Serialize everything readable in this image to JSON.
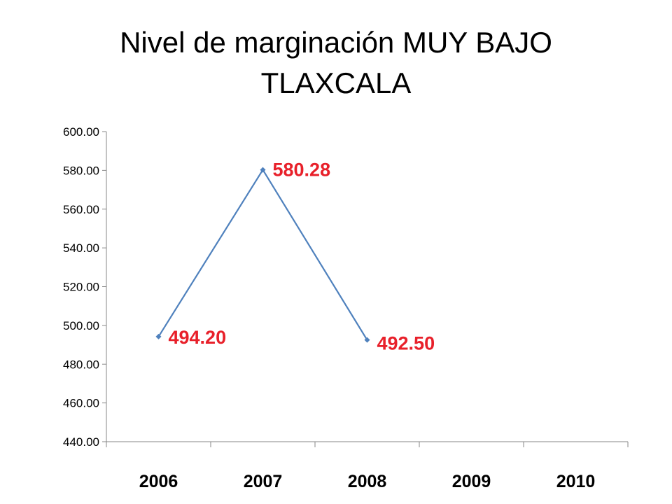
{
  "page": {
    "title_line1": "Nivel de marginación MUY BAJO",
    "title_line2": "TLAXCALA"
  },
  "chart_data": {
    "type": "line",
    "title": "Nivel de marginación MUY BAJO TLAXCALA",
    "xlabel": "",
    "ylabel": "",
    "categories": [
      "2006",
      "2007",
      "2008",
      "2009",
      "2010"
    ],
    "series": [
      {
        "values": [
          494.2,
          580.28,
          492.5,
          null,
          null
        ]
      }
    ],
    "data_labels": [
      "494.20",
      "580.28",
      "492.50"
    ],
    "ylim": [
      440,
      600
    ],
    "yticks": [
      "440.00",
      "460.00",
      "480.00",
      "500.00",
      "520.00",
      "540.00",
      "560.00",
      "580.00",
      "600.00"
    ],
    "grid": false,
    "legend": "none",
    "colors": {
      "line": "#4f81bd",
      "data_label": "#e8202a",
      "axis": "#878787"
    }
  }
}
